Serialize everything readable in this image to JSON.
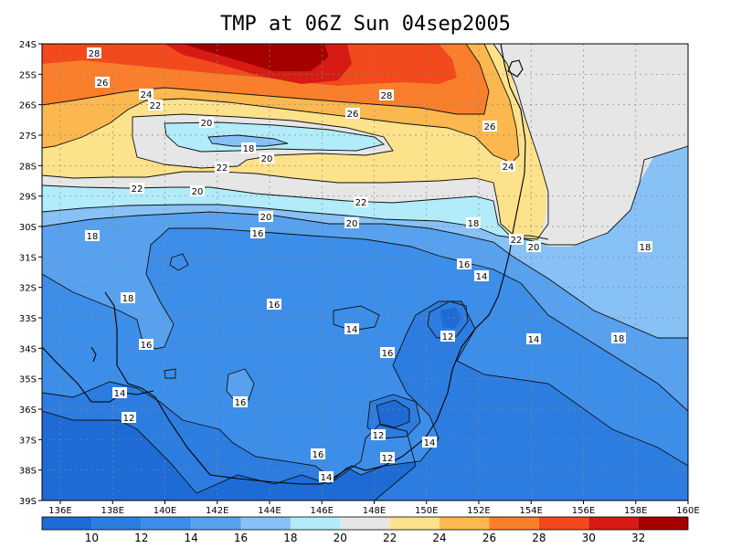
{
  "title": "TMP at 06Z Sun 04sep2005",
  "map": {
    "lat_labels": [
      "24S",
      "25S",
      "26S",
      "27S",
      "28S",
      "29S",
      "30S",
      "31S",
      "32S",
      "33S",
      "34S",
      "35S",
      "36S",
      "37S",
      "38S",
      "39S"
    ],
    "lon_labels": [
      "136E",
      "138E",
      "140E",
      "142E",
      "144E",
      "146E",
      "148E",
      "150E",
      "152E",
      "154E",
      "156E",
      "158E",
      "160E"
    ]
  },
  "contour_labels": [
    {
      "text": "28"
    },
    {
      "text": "26"
    },
    {
      "text": "24"
    },
    {
      "text": "22"
    },
    {
      "text": "20"
    },
    {
      "text": "18"
    },
    {
      "text": "20"
    },
    {
      "text": "28"
    },
    {
      "text": "26"
    },
    {
      "text": "26"
    },
    {
      "text": "24"
    },
    {
      "text": "22"
    },
    {
      "text": "22"
    },
    {
      "text": "20"
    },
    {
      "text": "22"
    },
    {
      "text": "18"
    },
    {
      "text": "16"
    },
    {
      "text": "20"
    },
    {
      "text": "18"
    },
    {
      "text": "22"
    },
    {
      "text": "20"
    },
    {
      "text": "20"
    },
    {
      "text": "18"
    },
    {
      "text": "16"
    },
    {
      "text": "14"
    },
    {
      "text": "18"
    },
    {
      "text": "16"
    },
    {
      "text": "14"
    },
    {
      "text": "12"
    },
    {
      "text": "14"
    },
    {
      "text": "16"
    },
    {
      "text": "18"
    },
    {
      "text": "16"
    },
    {
      "text": "14"
    },
    {
      "text": "12"
    },
    {
      "text": "16"
    },
    {
      "text": "14"
    },
    {
      "text": "12"
    },
    {
      "text": "14"
    },
    {
      "text": "12"
    },
    {
      "text": "16"
    },
    {
      "text": "14"
    }
  ],
  "colorbar": {
    "colors": [
      "#1e6bd6",
      "#2d7de0",
      "#3d8ee9",
      "#58a1ee",
      "#87c1f6",
      "#b2ecfa",
      "#e6e6e6",
      "#fde28c",
      "#fbb84e",
      "#f97f2c",
      "#f2491d",
      "#d81a14",
      "#a40000"
    ],
    "labels": [
      "10",
      "12",
      "14",
      "16",
      "18",
      "20",
      "22",
      "24",
      "26",
      "28",
      "30",
      "32"
    ]
  }
}
